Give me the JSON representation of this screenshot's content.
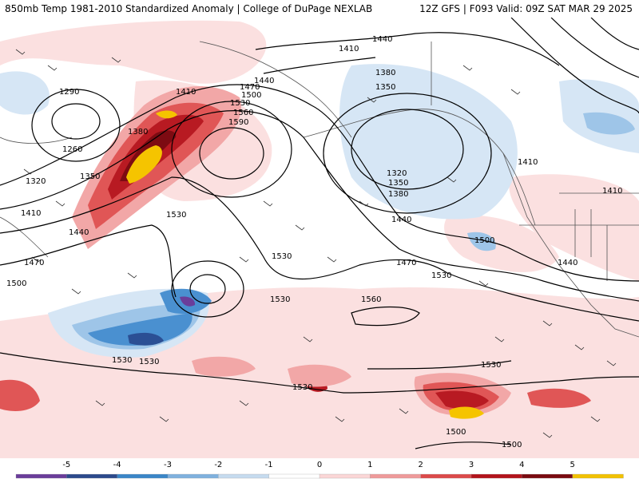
{
  "header": {
    "left_title": "850mb Temp 1981-2010 Standardized Anomaly | College of DuPage NEXLAB",
    "right_title": "12Z GFS | F093 Valid: 09Z SAT MAR 29 2025"
  },
  "contour_labels": [
    "1440",
    "1410",
    "1290",
    "1410",
    "1470",
    "1440",
    "1500",
    "1530",
    "1380",
    "1350",
    "1560",
    "1590",
    "1380",
    "1260",
    "1320",
    "1350",
    "1410",
    "1530",
    "1440",
    "1320",
    "1350",
    "1380",
    "1440",
    "1410",
    "1410",
    "1470",
    "1500",
    "1530",
    "1470",
    "1530",
    "1440",
    "1500",
    "1530",
    "1560",
    "1530",
    "1530",
    "1530",
    "1530",
    "1500",
    "1500"
  ],
  "colorbar": {
    "ticks": [
      "-5",
      "-4",
      "-3",
      "-2",
      "-1",
      "0",
      "1",
      "2",
      "3",
      "4",
      "5"
    ],
    "colors": [
      "#6a3d9a",
      "#2c4a8c",
      "#3a86c8",
      "#7fb1de",
      "#c6dbef",
      "#ffffff",
      "#fbd6d6",
      "#ef9a9a",
      "#dc4a4a",
      "#b3131b",
      "#7a0a10",
      "#f2c200"
    ]
  },
  "anomaly_colors": {
    "neg1": "#d6e6f5",
    "neg2": "#9ec5e8",
    "neg3": "#4a90d0",
    "neg4": "#2b4f94",
    "neg5": "#6a3d9a",
    "pos1": "#fbe0e0",
    "pos2": "#f2a7a7",
    "pos3": "#e05656",
    "pos4": "#b81a22",
    "pos5": "#7d0b12",
    "pos6": "#f5c400"
  }
}
